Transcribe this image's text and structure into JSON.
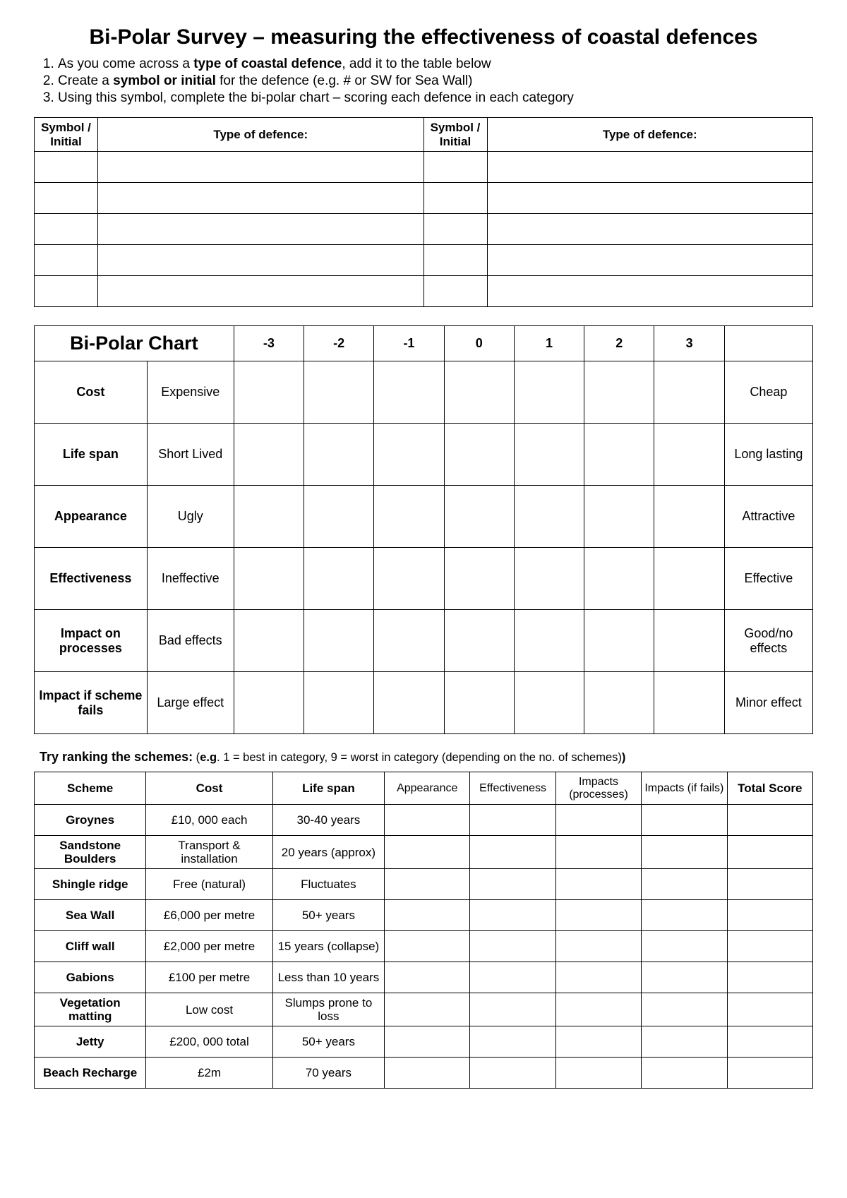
{
  "title": "Bi-Polar Survey – measuring the effectiveness of coastal defences",
  "instructions": {
    "i1a": "As you come across a ",
    "i1b": "type of coastal defence",
    "i1c": ", add it to the table below",
    "i2a": "Create a ",
    "i2b": "symbol or initial",
    "i2c": " for the defence (e.g. # or SW for Sea Wall)",
    "i3": "Using this symbol, complete the bi-polar chart – scoring each defence in each category"
  },
  "table1": {
    "h_sym": "Symbol / Initial",
    "h_type": "Type of defence:",
    "row_count": 5
  },
  "bipolar": {
    "title": "Bi-Polar Chart",
    "scale": [
      "-3",
      "-2",
      "-1",
      "0",
      "1",
      "2",
      "3"
    ],
    "rows": [
      {
        "label": "Cost",
        "neg": "Expensive",
        "pos": "Cheap"
      },
      {
        "label": "Life span",
        "neg": "Short Lived",
        "pos": "Long lasting"
      },
      {
        "label": "Appearance",
        "neg": "Ugly",
        "pos": "Attractive"
      },
      {
        "label": "Effectiveness",
        "neg": "Ineffective",
        "pos": "Effective"
      },
      {
        "label": "Impact on processes",
        "neg": "Bad effects",
        "pos": "Good/no effects"
      },
      {
        "label": "Impact if scheme fails",
        "neg": "Large effect",
        "pos": "Minor effect"
      }
    ]
  },
  "ranking_intro": {
    "lead_b": "Try ranking the schemes:",
    "rest_a": "  (",
    "eg_b": "e.g",
    "rest_b": ". 1 = best in category,   9 = worst in category (depending on the no. of schemes)",
    "tail_b": ")"
  },
  "ranking": {
    "headers": {
      "scheme": "Scheme",
      "cost": "Cost",
      "life": "Life span",
      "appearance": "Appearance",
      "effectiveness": "Effectiveness",
      "imp_proc": "Impacts (processes)",
      "imp_fail": "Impacts (if fails)",
      "total": "Total Score"
    },
    "rows": [
      {
        "scheme": "Groynes",
        "cost": "£10, 000 each",
        "life": "30-40 years"
      },
      {
        "scheme": "Sandstone Boulders",
        "cost": "Transport & installation",
        "life": "20 years (approx)"
      },
      {
        "scheme": "Shingle ridge",
        "cost": "Free (natural)",
        "life": "Fluctuates"
      },
      {
        "scheme": "Sea Wall",
        "cost": "£6,000 per metre",
        "life": "50+ years"
      },
      {
        "scheme": "Cliff wall",
        "cost": "£2,000 per metre",
        "life": "15 years (collapse)"
      },
      {
        "scheme": "Gabions",
        "cost": "£100 per metre",
        "life": "Less than 10 years"
      },
      {
        "scheme": "Vegetation matting",
        "cost": "Low cost",
        "life": "Slumps prone to loss"
      },
      {
        "scheme": "Jetty",
        "cost": "£200, 000 total",
        "life": "50+ years"
      },
      {
        "scheme": "Beach Recharge",
        "cost": "£2m",
        "life": "70 years"
      }
    ]
  }
}
